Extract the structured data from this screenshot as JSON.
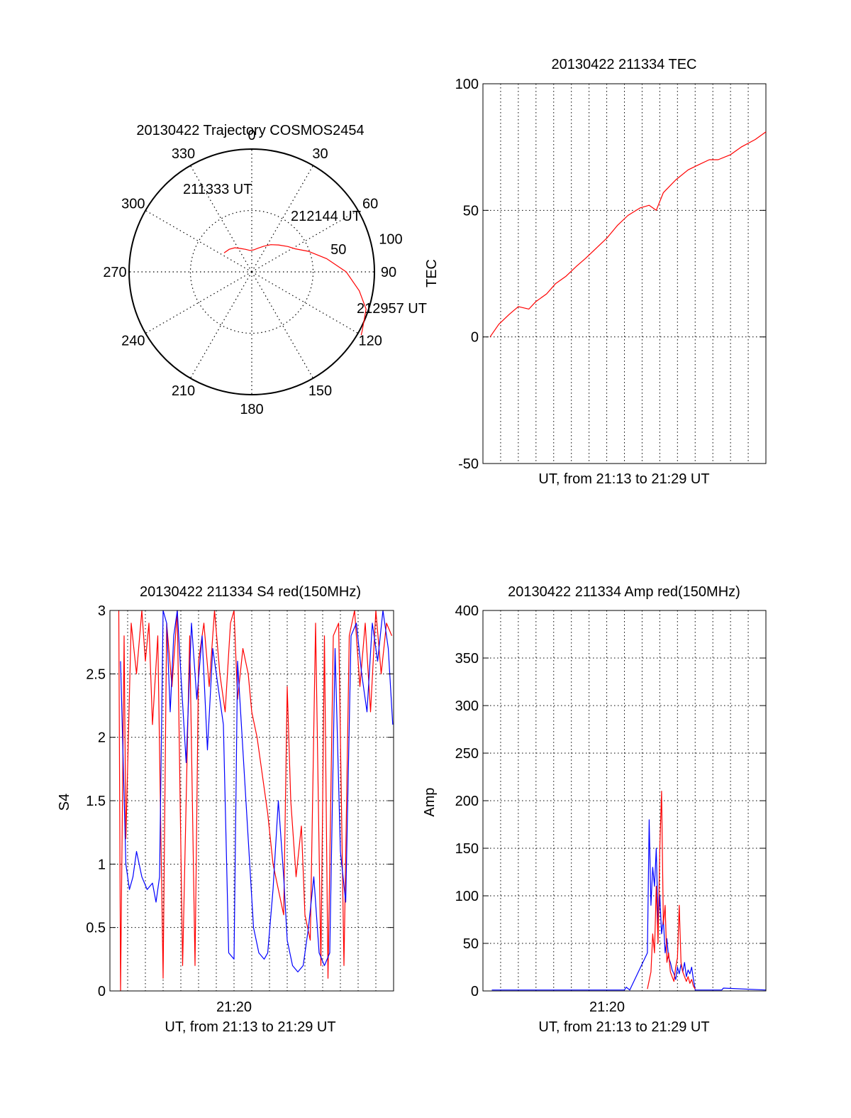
{
  "colors": {
    "axis": "#000000",
    "grid": "#000000",
    "red": "#ff0000",
    "blue": "#0000ff",
    "background": "#ffffff"
  },
  "chart_data": [
    {
      "id": "trajectory",
      "type": "polar",
      "title": "20130422 Trajectory COSMOS2454",
      "azimuth_labels": [
        "0",
        "30",
        "60",
        "90",
        "120",
        "150",
        "180",
        "210",
        "240",
        "270",
        "300",
        "330"
      ],
      "radial_labels": [
        "50",
        "100"
      ],
      "radial_max": 100,
      "grid": true,
      "series": [
        {
          "color": "red",
          "points": [
            [
              -55.6,
              27.3
            ],
            [
              -45,
              26
            ],
            [
              -35,
              24
            ],
            [
              -25,
              21
            ],
            [
              -15,
              19
            ],
            [
              -5,
              17.5
            ],
            [
              5,
              18
            ],
            [
              15,
              20
            ],
            [
              25,
              23
            ],
            [
              35,
              27
            ],
            [
              45,
              31
            ],
            [
              55,
              36
            ],
            [
              62,
              40
            ],
            [
              70,
              49
            ],
            [
              80,
              62
            ],
            [
              90,
              77
            ],
            [
              100,
              89
            ],
            [
              108,
              98
            ],
            [
              118,
              102
            ],
            [
              120,
              103
            ]
          ]
        }
      ],
      "annotations": [
        "211333 UT",
        "212144 UT",
        "212957 UT"
      ]
    },
    {
      "id": "tec",
      "type": "line",
      "title": "20130422 211334 TEC",
      "xlabel": "UT, from 21:13 to 21:29 UT",
      "ylabel": "TEC",
      "xlim": [
        0,
        16
      ],
      "ylim": [
        -50,
        100
      ],
      "yticks": [
        "-50",
        "0",
        "50",
        "100"
      ],
      "grid": true,
      "series": [
        {
          "color": "red",
          "x": [
            0.4,
            0.9,
            1.5,
            2.0,
            2.6,
            3.0,
            3.6,
            4.1,
            4.7,
            5.3,
            5.8,
            6.4,
            7.0,
            7.6,
            8.2,
            8.9,
            9.4,
            9.8,
            10.2,
            10.9,
            11.6,
            12.2,
            12.8,
            13.3,
            14.0,
            14.6,
            15.4,
            16.0
          ],
          "y": [
            0,
            5,
            9,
            12,
            11,
            14,
            17,
            21,
            24,
            28,
            31,
            35,
            39,
            44,
            48,
            51,
            52,
            50,
            57,
            62,
            66,
            68,
            70,
            70,
            72,
            75,
            78,
            81
          ]
        }
      ]
    },
    {
      "id": "s4",
      "type": "line",
      "title": "20130422 211334 S4 red(150MHz)",
      "xlabel": "UT, from 21:13 to 21:29 UT",
      "ylabel": "S4",
      "xlim": [
        0,
        16
      ],
      "ylim": [
        0,
        3
      ],
      "yticks": [
        "0",
        "0.5",
        "1",
        "1.5",
        "2",
        "2.5",
        "3"
      ],
      "xtick_labels": [
        "21:20"
      ],
      "grid": true,
      "series": [
        {
          "color": "red",
          "x": [
            0.5,
            0.6,
            0.8,
            0.9,
            1.2,
            1.5,
            1.8,
            2.0,
            2.2,
            2.4,
            2.7,
            3.0,
            3.2,
            3.5,
            3.8,
            4.1,
            4.5,
            4.8,
            5.0,
            5.3,
            5.6,
            5.9,
            6.2,
            6.5,
            6.8,
            7.0,
            7.2,
            7.5,
            7.8,
            8.0,
            8.3,
            8.6,
            8.9,
            9.2,
            9.5,
            9.8,
            10.0,
            10.2,
            10.5,
            10.8,
            11.0,
            11.3,
            11.6,
            11.9,
            12.1,
            12.3,
            12.6,
            12.9,
            13.2,
            13.5,
            13.8,
            14.1,
            14.4,
            14.7,
            15.0,
            15.3,
            15.6,
            15.9
          ],
          "y": [
            3,
            0,
            2.8,
            1.2,
            2.9,
            2.5,
            3,
            2.6,
            2.9,
            2.1,
            2.8,
            0.1,
            2.9,
            2.4,
            3,
            0.2,
            2.8,
            0.2,
            2.6,
            2.9,
            2.4,
            3,
            2.5,
            2.2,
            2.9,
            3,
            2.3,
            2.7,
            2.5,
            2.2,
            2.0,
            1.7,
            1.4,
            1.0,
            0.8,
            0.6,
            2.4,
            1.5,
            0.9,
            1.3,
            0.6,
            0.4,
            2.9,
            0.2,
            2.8,
            0.1,
            2.8,
            2.9,
            0.2,
            2.8,
            3,
            2.4,
            2.9,
            2.2,
            3,
            2.5,
            2.9,
            2.8
          ]
        },
        {
          "color": "blue",
          "x": [
            0.6,
            0.9,
            1.1,
            1.3,
            1.5,
            1.8,
            2.1,
            2.4,
            2.6,
            2.8,
            3.0,
            3.2,
            3.4,
            3.6,
            3.8,
            4.0,
            4.3,
            4.6,
            4.9,
            5.2,
            5.5,
            5.8,
            6.1,
            6.4,
            6.7,
            7.0,
            7.2,
            7.5,
            7.8,
            8.1,
            8.4,
            8.7,
            8.9,
            9.2,
            9.5,
            9.8,
            10.0,
            10.3,
            10.6,
            10.9,
            11.2,
            11.5,
            11.8,
            12.1,
            12.4,
            12.7,
            13.0,
            13.3,
            13.6,
            13.9,
            14.2,
            14.5,
            14.8,
            15.1,
            15.4,
            15.7,
            15.95
          ],
          "y": [
            2.6,
            1.0,
            0.8,
            0.9,
            1.1,
            0.9,
            0.8,
            0.85,
            0.7,
            0.9,
            3,
            2.9,
            2.2,
            2.8,
            3,
            2.5,
            1.8,
            2.9,
            2.3,
            2.8,
            1.9,
            2.7,
            2.4,
            2.1,
            0.3,
            0.25,
            2.6,
            1.9,
            1.2,
            0.5,
            0.3,
            0.25,
            0.3,
            0.8,
            1.5,
            0.9,
            0.4,
            0.2,
            0.15,
            0.2,
            0.5,
            0.9,
            0.3,
            0.2,
            0.3,
            2.7,
            1.1,
            0.7,
            2.8,
            2.9,
            2.5,
            2.2,
            2.9,
            2.6,
            3,
            2.7,
            2.1
          ]
        }
      ]
    },
    {
      "id": "amp",
      "type": "line",
      "title": "20130422 211334 Amp red(150MHz)",
      "xlabel": "UT, from 21:13 to 21:29 UT",
      "ylabel": "Amp",
      "xlim": [
        0,
        16
      ],
      "ylim": [
        0,
        400
      ],
      "yticks": [
        "0",
        "50",
        "100",
        "150",
        "200",
        "250",
        "300",
        "350",
        "400"
      ],
      "xtick_labels": [
        "21:20"
      ],
      "grid": true,
      "series": [
        {
          "color": "blue",
          "x": [
            0.5,
            8.0,
            8.1,
            8.3,
            9.3,
            9.4,
            9.5,
            9.6,
            9.7,
            9.8,
            9.9,
            10.0,
            10.1,
            10.2,
            10.3,
            10.4,
            10.5,
            10.6,
            10.7,
            10.8,
            10.9,
            11.0,
            11.1,
            11.2,
            11.3,
            11.4,
            11.5,
            11.6,
            11.7,
            11.8,
            11.9,
            12.0,
            12.2,
            13.5,
            13.6,
            16.0
          ],
          "y": [
            1,
            1,
            4,
            1,
            40,
            180,
            90,
            130,
            110,
            150,
            70,
            100,
            60,
            75,
            40,
            55,
            35,
            30,
            22,
            18,
            12,
            25,
            18,
            28,
            20,
            30,
            15,
            22,
            18,
            25,
            12,
            1,
            1,
            1,
            3,
            1
          ]
        },
        {
          "color": "red",
          "x": [
            9.3,
            9.5,
            9.6,
            9.7,
            9.8,
            9.9,
            10.0,
            10.1,
            10.2,
            10.3,
            10.4,
            10.5,
            10.6,
            10.7,
            10.8,
            10.9,
            11.0,
            11.1,
            11.2,
            11.3,
            11.4,
            11.5,
            11.6,
            11.7,
            11.8,
            11.9,
            12.0
          ],
          "y": [
            2,
            20,
            60,
            40,
            110,
            50,
            150,
            210,
            70,
            90,
            30,
            40,
            20,
            15,
            10,
            25,
            35,
            90,
            30,
            20,
            15,
            10,
            15,
            8,
            12,
            5,
            2
          ]
        }
      ]
    }
  ]
}
